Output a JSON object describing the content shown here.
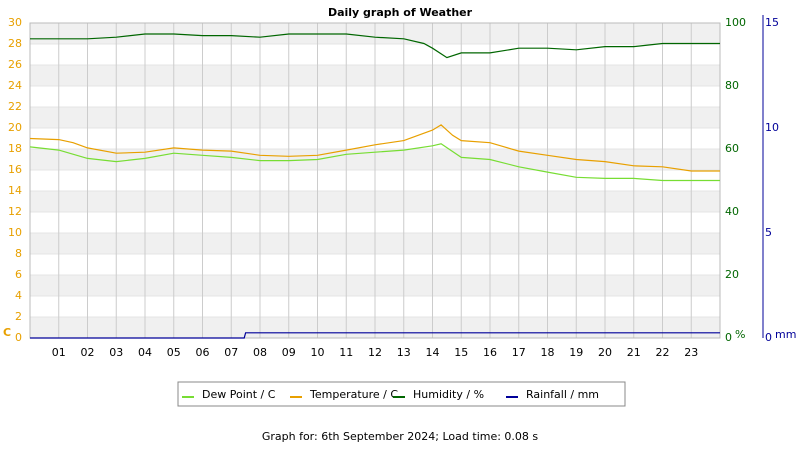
{
  "chart_data": {
    "type": "line",
    "title": "Daily graph of Weather",
    "footer": "Graph for: 6th September 2024; Load time: 0.08 s",
    "ylabel": "C",
    "y2label": "%",
    "y3label": "mm",
    "xlim": [
      0,
      24
    ],
    "xticks": [
      {
        "value": 1,
        "label": "01"
      },
      {
        "value": 2,
        "label": "02"
      },
      {
        "value": 3,
        "label": "03"
      },
      {
        "value": 4,
        "label": "04"
      },
      {
        "value": 5,
        "label": "05"
      },
      {
        "value": 6,
        "label": "06"
      },
      {
        "value": 7,
        "label": "07"
      },
      {
        "value": 8,
        "label": "08"
      },
      {
        "value": 9,
        "label": "09"
      },
      {
        "value": 10,
        "label": "10"
      },
      {
        "value": 11,
        "label": "11"
      },
      {
        "value": 12,
        "label": "12"
      },
      {
        "value": 13,
        "label": "13"
      },
      {
        "value": 14,
        "label": "14"
      },
      {
        "value": 15,
        "label": "15"
      },
      {
        "value": 16,
        "label": "16"
      },
      {
        "value": 17,
        "label": "17"
      },
      {
        "value": 18,
        "label": "18"
      },
      {
        "value": 19,
        "label": "19"
      },
      {
        "value": 20,
        "label": "20"
      },
      {
        "value": 21,
        "label": "21"
      },
      {
        "value": 22,
        "label": "22"
      },
      {
        "value": 23,
        "label": "23"
      }
    ],
    "ylim": [
      0,
      30
    ],
    "yticks": [
      0,
      2,
      4,
      6,
      8,
      10,
      12,
      14,
      16,
      18,
      20,
      22,
      24,
      26,
      28,
      30
    ],
    "ycolor": "#e8a000",
    "y2lim": [
      0,
      100
    ],
    "y2ticks": [
      0,
      20,
      40,
      60,
      80,
      100
    ],
    "y2color": "#006600",
    "y3lim": [
      0,
      15
    ],
    "y3ticks": [
      0,
      5,
      10,
      15
    ],
    "y3color": "#000099",
    "grid": true,
    "series": [
      {
        "name": "Dew Point / C",
        "color": "#77dd33",
        "axis": "y",
        "x": [
          0,
          1,
          2,
          3,
          4,
          5,
          6,
          7,
          8,
          9,
          10,
          11,
          12,
          13,
          14,
          14.3,
          15,
          16,
          17,
          18,
          19,
          20,
          21,
          22,
          23,
          24
        ],
        "values": [
          18.2,
          17.9,
          17.1,
          16.8,
          17.1,
          17.6,
          17.4,
          17.2,
          16.9,
          16.9,
          17.0,
          17.5,
          17.7,
          17.9,
          18.3,
          18.5,
          17.2,
          17.0,
          16.3,
          15.8,
          15.3,
          15.2,
          15.2,
          15.0,
          15.0,
          15.0
        ]
      },
      {
        "name": "Temperature / C",
        "color": "#e8a000",
        "axis": "y",
        "x": [
          0,
          1,
          1.5,
          2,
          3,
          4,
          5,
          6,
          7,
          8,
          9,
          10,
          11,
          12,
          13,
          14,
          14.3,
          14.7,
          15,
          16,
          17,
          18,
          19,
          20,
          21,
          22,
          23,
          24
        ],
        "values": [
          19.0,
          18.9,
          18.6,
          18.1,
          17.6,
          17.7,
          18.1,
          17.9,
          17.8,
          17.4,
          17.3,
          17.4,
          17.9,
          18.4,
          18.8,
          19.8,
          20.3,
          19.3,
          18.8,
          18.6,
          17.8,
          17.4,
          17.0,
          16.8,
          16.4,
          16.3,
          15.9,
          15.9
        ]
      },
      {
        "name": "Humidity / %",
        "color": "#006600",
        "axis": "y2",
        "x": [
          0,
          1,
          2,
          3,
          4,
          5,
          6,
          7,
          8,
          9,
          10,
          11,
          12,
          13,
          13.7,
          14,
          14.5,
          15,
          16,
          17,
          18,
          19,
          20,
          21,
          22,
          24
        ],
        "values": [
          95,
          95,
          95,
          95.5,
          96.5,
          96.5,
          96,
          96,
          95.5,
          96.5,
          96.5,
          96.5,
          95.5,
          95,
          93.5,
          92,
          89,
          90.5,
          90.5,
          92,
          92,
          91.5,
          92.5,
          92.5,
          93.5,
          93.5
        ]
      },
      {
        "name": "Rainfall / mm",
        "color": "#000099",
        "axis": "y3",
        "x": [
          0,
          7.45,
          7.5,
          24
        ],
        "values": [
          0,
          0,
          0.25,
          0.25
        ]
      }
    ]
  }
}
